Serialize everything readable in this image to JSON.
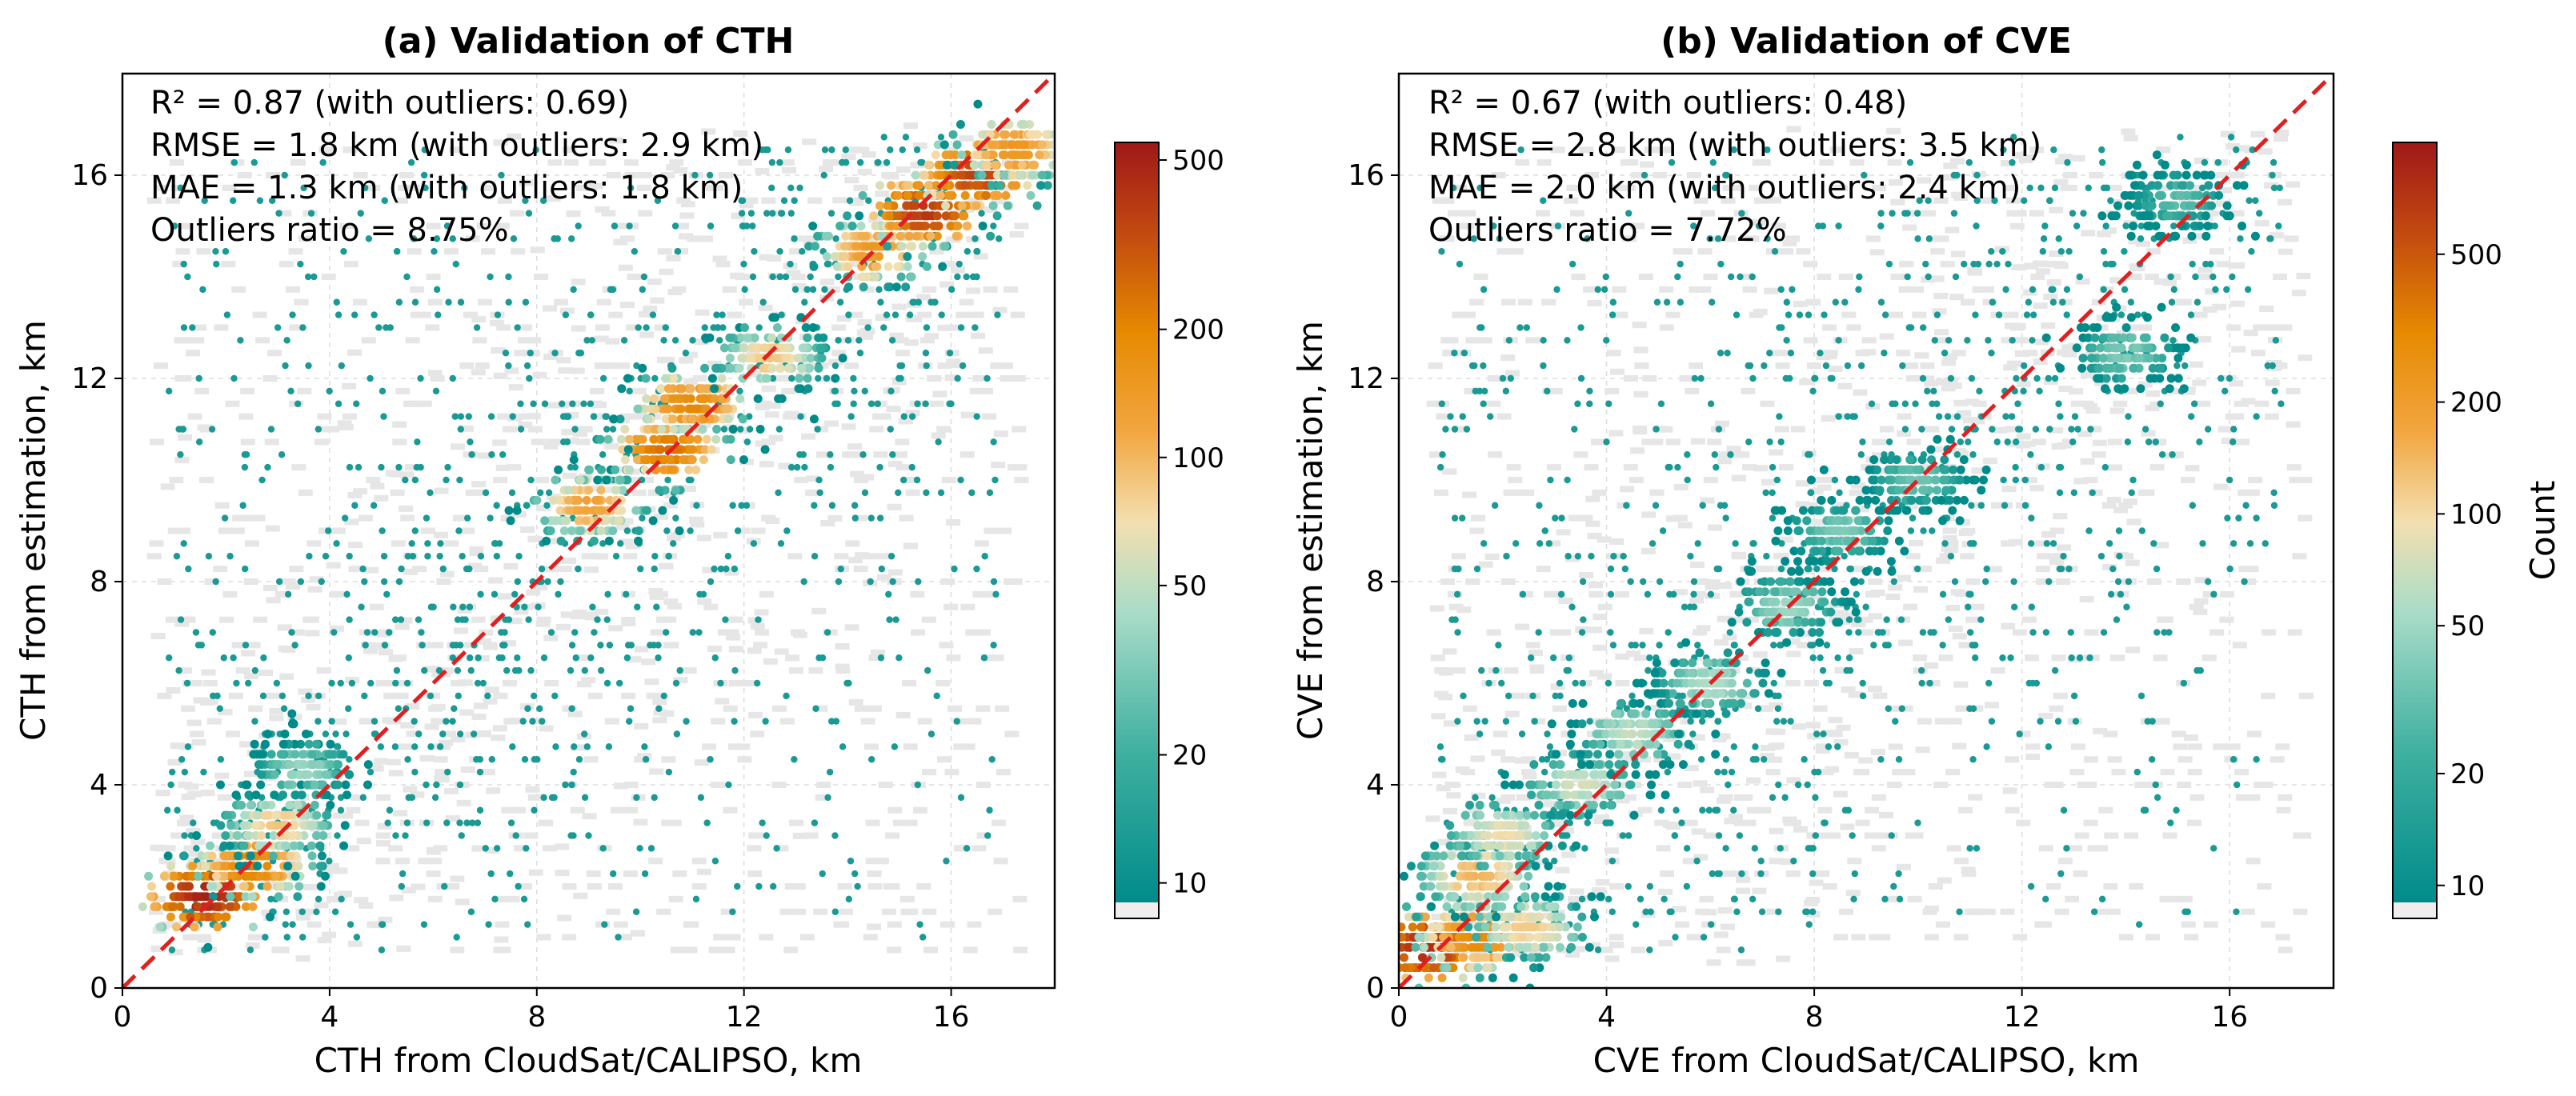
{
  "chart_data": [
    {
      "type": "hexbin-scatter",
      "title": "(a) Validation of CTH",
      "xlabel": "CTH from CloudSat/CALIPSO, km",
      "ylabel": "CTH from estimation, km",
      "xlim": [
        0,
        18
      ],
      "ylim": [
        0,
        18
      ],
      "xticks": [
        0,
        4,
        8,
        12,
        16
      ],
      "yticks": [
        0,
        4,
        8,
        12,
        16
      ],
      "grid": true,
      "reference_line": {
        "type": "1:1",
        "color": "#e02020",
        "style": "dashed"
      },
      "stats": [
        "R² = 0.87 (with outliers: 0.69)",
        "RMSE = 1.8 km (with outliers: 2.9 km)",
        "MAE = 1.3 km (with outliers: 1.8 km)",
        "Outliers ratio = 8.75%"
      ],
      "stats_position": "top-left",
      "colorbar": {
        "label": "",
        "scale": "log",
        "range": [
          9,
          550
        ],
        "ticks": [
          10,
          20,
          50,
          100,
          200,
          500
        ]
      },
      "density_clusters": [
        {
          "x": 1.6,
          "y": 1.8,
          "count": 520
        },
        {
          "x": 2.5,
          "y": 2.4,
          "count": 220
        },
        {
          "x": 3.0,
          "y": 3.2,
          "count": 90
        },
        {
          "x": 3.5,
          "y": 4.3,
          "count": 40
        },
        {
          "x": 9.0,
          "y": 9.5,
          "count": 130
        },
        {
          "x": 10.5,
          "y": 10.6,
          "count": 250
        },
        {
          "x": 11.0,
          "y": 11.5,
          "count": 200
        },
        {
          "x": 12.5,
          "y": 12.4,
          "count": 90
        },
        {
          "x": 14.5,
          "y": 14.5,
          "count": 150
        },
        {
          "x": 15.5,
          "y": 15.3,
          "count": 420
        },
        {
          "x": 16.5,
          "y": 16.0,
          "count": 380
        },
        {
          "x": 17.2,
          "y": 16.5,
          "count": 160
        }
      ]
    },
    {
      "type": "hexbin-scatter",
      "title": "(b) Validation of CVE",
      "xlabel": "CVE from CloudSat/CALIPSO, km",
      "ylabel": "CVE from estimation, km",
      "xlim": [
        0,
        18
      ],
      "ylim": [
        0,
        18
      ],
      "xticks": [
        0,
        4,
        8,
        12,
        16
      ],
      "yticks": [
        0,
        4,
        8,
        12,
        16
      ],
      "grid": true,
      "reference_line": {
        "type": "1:1",
        "color": "#e02020",
        "style": "dashed"
      },
      "stats": [
        "R² = 0.67 (with outliers: 0.48)",
        "RMSE = 2.8 km (with outliers: 3.5 km)",
        "MAE = 2.0 km (with outliers: 2.4 km)",
        "Outliers ratio = 7.72%"
      ],
      "stats_position": "top-left",
      "colorbar": {
        "label": "Count",
        "scale": "log",
        "range": [
          9,
          1000
        ],
        "ticks": [
          10,
          20,
          50,
          100,
          200,
          500
        ]
      },
      "density_clusters": [
        {
          "x": 0.5,
          "y": 0.8,
          "count": 800
        },
        {
          "x": 1.5,
          "y": 1.0,
          "count": 300
        },
        {
          "x": 2.5,
          "y": 1.2,
          "count": 120
        },
        {
          "x": 1.5,
          "y": 2.2,
          "count": 150
        },
        {
          "x": 2.0,
          "y": 3.0,
          "count": 100
        },
        {
          "x": 3.5,
          "y": 4.0,
          "count": 80
        },
        {
          "x": 4.5,
          "y": 5.0,
          "count": 70
        },
        {
          "x": 6.0,
          "y": 6.0,
          "count": 60
        },
        {
          "x": 7.5,
          "y": 7.5,
          "count": 50
        },
        {
          "x": 8.5,
          "y": 9.0,
          "count": 40
        },
        {
          "x": 10.0,
          "y": 10.0,
          "count": 35
        },
        {
          "x": 14.0,
          "y": 12.5,
          "count": 40
        },
        {
          "x": 15.0,
          "y": 15.5,
          "count": 30
        }
      ]
    }
  ]
}
